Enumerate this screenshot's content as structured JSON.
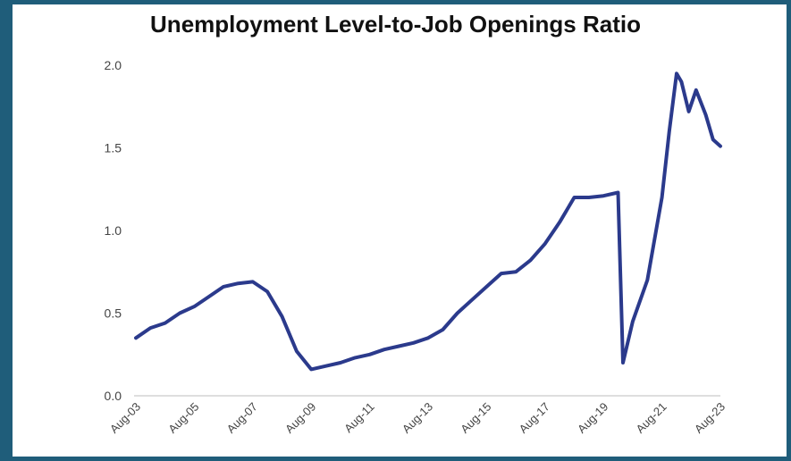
{
  "chart_data": {
    "type": "line",
    "title": "Unemployment Level-to-Job Openings Ratio",
    "xlabel": "",
    "ylabel": "",
    "ylim": [
      0,
      2.0
    ],
    "yticks": [
      "0.0",
      "0.5",
      "1.0",
      "1.5",
      "2.0"
    ],
    "xticks": [
      "Aug-03",
      "Aug-05",
      "Aug-07",
      "Aug-09",
      "Aug-11",
      "Aug-13",
      "Aug-15",
      "Aug-17",
      "Aug-19",
      "Aug-21",
      "Aug-23"
    ],
    "grid": false,
    "line_color": "#2b3a8c",
    "series": [
      {
        "x": [
          "Aug-03",
          "Feb-04",
          "Aug-04",
          "Feb-05",
          "Aug-05",
          "Feb-06",
          "Aug-06",
          "Feb-07",
          "Aug-07",
          "Feb-08",
          "Aug-08",
          "Feb-09",
          "Aug-09",
          "Feb-10",
          "Aug-10",
          "Feb-11",
          "Aug-11",
          "Feb-12",
          "Aug-12",
          "Feb-13",
          "Aug-13",
          "Feb-14",
          "Aug-14",
          "Feb-15",
          "Aug-15",
          "Feb-16",
          "Aug-16",
          "Feb-17",
          "Aug-17",
          "Feb-18",
          "Aug-18",
          "Feb-19",
          "Aug-19",
          "Feb-20",
          "Apr-20",
          "Aug-20",
          "Feb-21",
          "Aug-21",
          "Nov-21",
          "Feb-22",
          "Apr-22",
          "Jul-22",
          "Oct-22",
          "Feb-23",
          "May-23",
          "Aug-23"
        ],
        "y": [
          0.35,
          0.41,
          0.44,
          0.5,
          0.54,
          0.6,
          0.66,
          0.68,
          0.69,
          0.63,
          0.48,
          0.27,
          0.16,
          0.18,
          0.2,
          0.23,
          0.25,
          0.28,
          0.3,
          0.32,
          0.35,
          0.4,
          0.5,
          0.58,
          0.66,
          0.74,
          0.75,
          0.82,
          0.92,
          1.05,
          1.2,
          1.2,
          1.21,
          1.23,
          0.2,
          0.45,
          0.7,
          1.2,
          1.6,
          1.95,
          1.9,
          1.72,
          1.85,
          1.7,
          1.55,
          1.51
        ]
      }
    ]
  }
}
